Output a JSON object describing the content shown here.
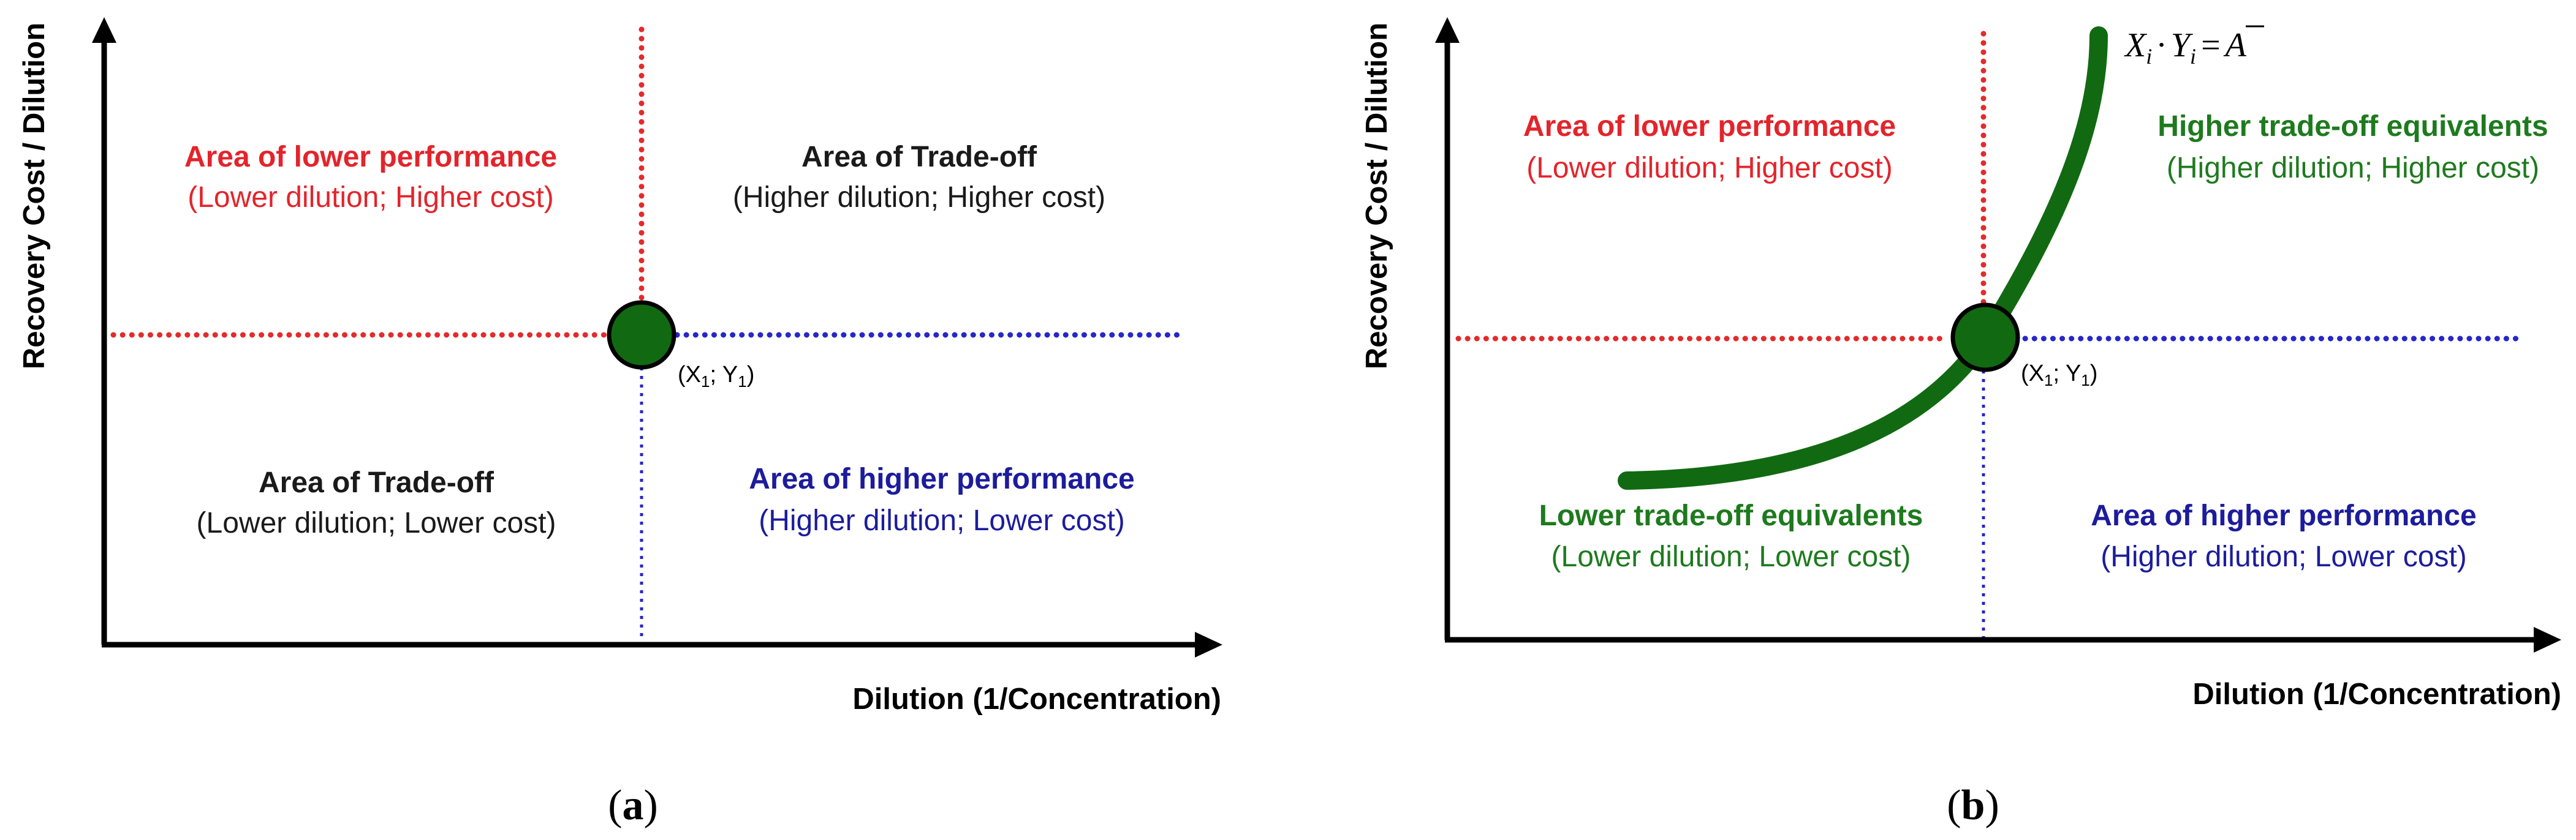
{
  "colors": {
    "axis": "#000000",
    "red": "#e3242b",
    "blue": "#1c1c9c",
    "dark_text": "#1a1a1a",
    "green": "#116a11",
    "green_text": "#1e7a1e",
    "red_dotted": "#e32b2b",
    "blue_dotted": "#2727c8"
  },
  "shared": {
    "y_axis_label": "Recovery Cost / Dilution",
    "x_axis_label": "Dilution (1/Concentration)",
    "point_label": {
      "prefix": "(X",
      "mid": "; Y",
      "suffix": ")",
      "sub": "1"
    }
  },
  "panel_a": {
    "caption_letter": "a",
    "lower_perf_title": "Area of lower performance",
    "lower_perf_sub": "(Lower dilution; Higher cost)",
    "tradeoff_high_title": "Area of Trade-off",
    "tradeoff_high_sub": "(Higher dilution; Higher cost)",
    "tradeoff_low_title": "Area of Trade-off",
    "tradeoff_low_sub": "(Lower dilution; Lower cost)",
    "higher_perf_title": "Area of higher performance",
    "higher_perf_sub": "(Higher dilution; Lower cost)"
  },
  "panel_b": {
    "caption_letter": "b",
    "equation": {
      "x": "X",
      "i": "i",
      "dot": "·",
      "y": "Y",
      "eq": "=",
      "a": "A"
    },
    "lower_perf_title": "Area of lower performance",
    "lower_perf_sub": "(Lower dilution; Higher cost)",
    "higher_equiv_title": "Higher trade-off equivalents",
    "higher_equiv_sub": "(Higher dilution; Higher cost)",
    "lower_equiv_title": "Lower trade-off equivalents",
    "lower_equiv_sub": "(Lower dilution; Lower cost)",
    "higher_perf_title": "Area of higher performance",
    "higher_perf_sub": "(Higher dilution; Lower cost)"
  }
}
